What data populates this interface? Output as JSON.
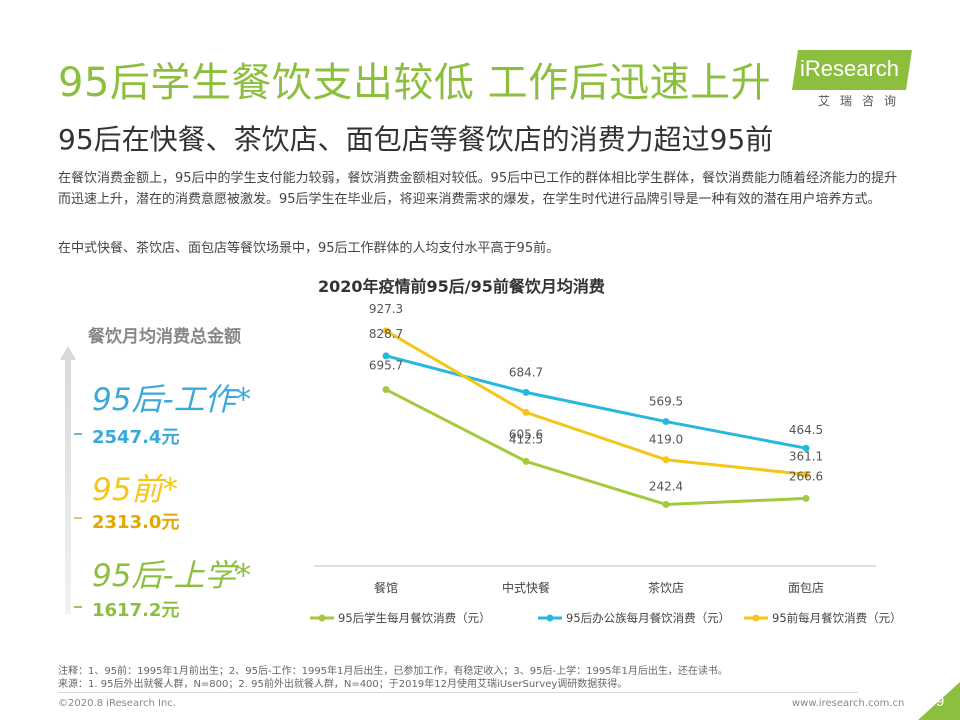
{
  "header": {
    "title": "95后学生餐饮支出较低 工作后迅速上升",
    "subtitle": "95后在快餐、茶饮店、面包店等餐饮店的消费力超过95前",
    "logo_text": "iResearch",
    "logo_sub": "艾瑞咨询"
  },
  "body": {
    "para1": "在餐饮消费金额上，95后中的学生支付能力较弱，餐饮消费金额相对较低。95后中已工作的群体相比学生群体，餐饮消费能力随着经济能力的提升而迅速上升，潜在的消费意愿被激发。95后学生在毕业后，将迎来消费需求的爆发，在学生时代进行品牌引导是一种有效的潜在用户培养方式。",
    "para2": "在中式快餐、茶饮店、面包店等餐饮场景中，95后工作群体的人均支付水平高于95前。"
  },
  "totals": {
    "title": "餐饮月均消费总金额",
    "groups": [
      {
        "label": "95后-工作*",
        "value": "2547.4元",
        "color": "#3aa8d8"
      },
      {
        "label": "95前*",
        "value": "2313.0元",
        "color": "#f5c518"
      },
      {
        "label": "95后-上学*",
        "value": "1617.2元",
        "color": "#8dbf3f"
      }
    ]
  },
  "chart_data": {
    "type": "line",
    "title": "2020年疫情前95后/95前餐饮月均消费",
    "categories": [
      "餐馆",
      "中式快餐",
      "茶饮店",
      "面包店"
    ],
    "ylim": [
      0,
      1000
    ],
    "grid": false,
    "legend_position": "bottom",
    "series": [
      {
        "name": "95后学生每月餐饮消费（元）",
        "color": "#a5c93d",
        "values": [
          695.7,
          412.5,
          242.4,
          266.6
        ],
        "labels": [
          "695.7",
          "412.5",
          "242.4",
          "266.6"
        ]
      },
      {
        "name": "95后办公族每月餐饮消费（元）",
        "color": "#27b8e0",
        "values": [
          828.7,
          684.7,
          569.5,
          464.5
        ],
        "labels": [
          "828.7",
          "684.7",
          "569.5",
          "464.5"
        ]
      },
      {
        "name": "95前每月餐饮消费（元）",
        "color": "#f5c518",
        "values": [
          927.3,
          605.6,
          419.0,
          361.1
        ],
        "labels": [
          "927.3",
          "605.6",
          "419.0",
          "361.1"
        ]
      }
    ]
  },
  "footer": {
    "note1": "注释：1、95前：1995年1月前出生；2、95后-工作：1995年1月后出生，已参加工作，有稳定收入；3、95后-上学：1995年1月后出生，还在读书。",
    "note2": "来源：1. 95后外出就餐人群，N=800；2. 95前外出就餐人群，N=400；于2019年12月使用艾瑞iUserSurvey调研数据获得。",
    "copyright": "©2020.8 iResearch Inc.",
    "website": "www.iresearch.com.cn",
    "page": "9"
  }
}
